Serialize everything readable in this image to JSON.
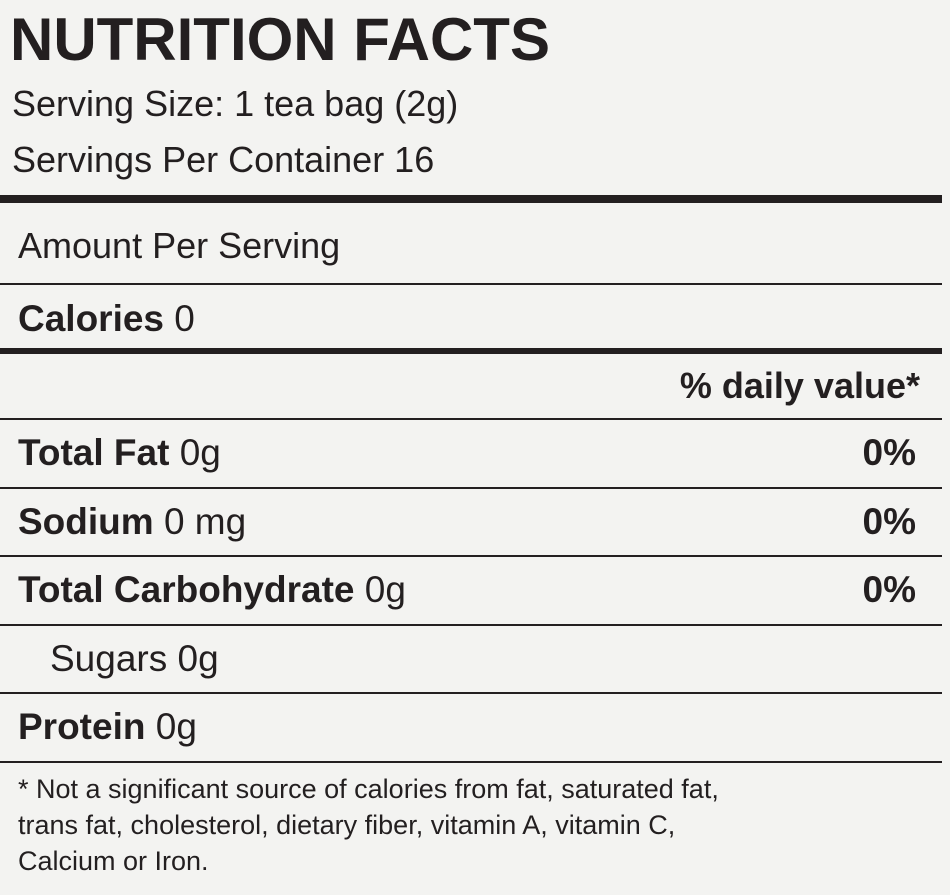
{
  "title": "NUTRITION FACTS",
  "serving_size": "Serving Size: 1 tea bag (2g)",
  "servings_per_container": "Servings Per Container 16",
  "amount_per_serving": "Amount Per Serving",
  "calories": {
    "label": "Calories",
    "value": "0"
  },
  "daily_value_header": "% daily value*",
  "rows": [
    {
      "name": "Total Fat",
      "amount": "0g",
      "dv": "0%"
    },
    {
      "name": "Sodium",
      "amount": "0 mg",
      "dv": "0%"
    },
    {
      "name": "Total Carbohydrate",
      "amount": "0g",
      "dv": "0%"
    },
    {
      "name": "Sugars",
      "amount": "0g"
    },
    {
      "name": "Protein",
      "amount": "0g"
    }
  ],
  "footnote": [
    "* Not a significant source of calories from fat, saturated fat,",
    "trans fat, cholesterol, dietary fiber, vitamin A, vitamin C,",
    "Calcium or Iron."
  ]
}
